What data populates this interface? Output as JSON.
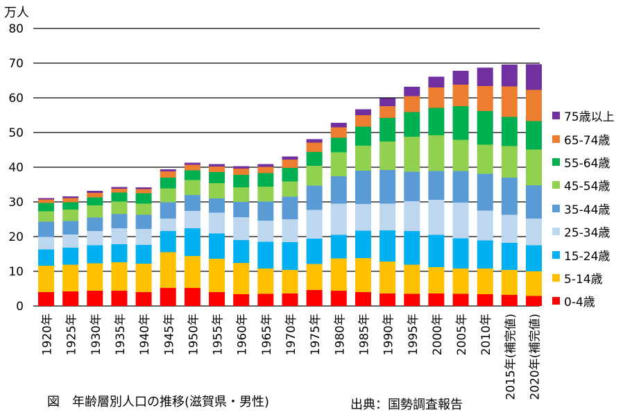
{
  "chart_data": {
    "type": "bar",
    "stacked": true,
    "unit": "万人",
    "title": "図　年齢層別人口の推移(滋賀県・男性)",
    "source": "出典：国勢調査報告",
    "ylim": [
      0,
      80
    ],
    "yticks": [
      0,
      10,
      20,
      30,
      40,
      50,
      60,
      70,
      80
    ],
    "grid": true,
    "legend_position": "right",
    "categories": [
      "1920年",
      "1925年",
      "1930年",
      "1935年",
      "1940年",
      "1945年",
      "1950年",
      "1955年",
      "1960年",
      "1965年",
      "1970年",
      "1975年",
      "1980年",
      "1985年",
      "1990年",
      "1995年",
      "2000年",
      "2005年",
      "2010年",
      "2015年(補完値)",
      "2020年(補完値)"
    ],
    "series": [
      {
        "name": "0-4歳",
        "color": "#ff0000",
        "values": [
          4.0,
          4.2,
          4.4,
          4.4,
          4.0,
          5.2,
          5.2,
          4.0,
          3.4,
          3.5,
          3.6,
          4.6,
          4.4,
          4.0,
          3.6,
          3.5,
          3.6,
          3.5,
          3.4,
          3.2,
          2.9
        ]
      },
      {
        "name": "5-14歳",
        "color": "#ffc000",
        "values": [
          7.6,
          7.7,
          7.9,
          8.2,
          8.2,
          10.3,
          9.2,
          9.6,
          9.0,
          7.3,
          6.8,
          7.5,
          9.3,
          9.8,
          9.2,
          8.4,
          7.6,
          7.3,
          7.4,
          7.2,
          7.1
        ]
      },
      {
        "name": "15-24歳",
        "color": "#00b0f0",
        "values": [
          4.7,
          4.9,
          5.2,
          5.2,
          5.4,
          6.1,
          8.0,
          7.3,
          6.6,
          7.7,
          8.0,
          7.3,
          6.8,
          7.9,
          9.0,
          9.7,
          9.3,
          8.7,
          8.1,
          7.8,
          7.5
        ]
      },
      {
        "name": "25-34歳",
        "color": "#bdd7ee",
        "values": [
          3.6,
          3.8,
          4.1,
          4.6,
          4.6,
          3.6,
          5.0,
          6.0,
          6.6,
          6.1,
          6.6,
          8.3,
          9.0,
          7.7,
          7.7,
          8.6,
          10.1,
          10.3,
          8.6,
          8.1,
          7.7
        ]
      },
      {
        "name": "35-44歳",
        "color": "#5b9bd5",
        "values": [
          4.4,
          3.9,
          3.9,
          4.1,
          4.1,
          4.7,
          4.6,
          4.1,
          4.4,
          5.5,
          6.5,
          7.0,
          7.9,
          9.6,
          9.7,
          8.5,
          8.3,
          9.1,
          10.6,
          10.7,
          9.6
        ]
      },
      {
        "name": "45-54歳",
        "color": "#92d050",
        "values": [
          3.0,
          3.3,
          3.5,
          3.6,
          3.2,
          4.0,
          4.3,
          4.4,
          4.2,
          4.3,
          4.4,
          5.7,
          6.9,
          7.2,
          8.2,
          10.1,
          10.3,
          9.0,
          8.4,
          9.1,
          10.3
        ]
      },
      {
        "name": "55-64歳",
        "color": "#00b050",
        "values": [
          2.4,
          2.1,
          2.3,
          2.6,
          3.0,
          3.1,
          2.8,
          3.2,
          3.6,
          3.9,
          3.9,
          4.0,
          4.2,
          5.5,
          6.8,
          7.1,
          7.9,
          9.7,
          9.7,
          8.4,
          8.2
        ]
      },
      {
        "name": "65-74歳",
        "color": "#ed7d31",
        "values": [
          1.0,
          1.2,
          1.3,
          1.1,
          1.2,
          1.8,
          1.6,
          1.6,
          1.8,
          1.8,
          2.4,
          2.7,
          3.0,
          3.3,
          3.4,
          4.6,
          5.9,
          6.2,
          7.2,
          8.8,
          9.0
        ]
      },
      {
        "name": "75歳以上",
        "color": "#7030a0",
        "values": [
          0.4,
          0.5,
          0.6,
          0.5,
          0.5,
          0.6,
          0.6,
          0.7,
          0.7,
          0.8,
          0.9,
          1.0,
          1.3,
          1.7,
          2.3,
          2.7,
          3.1,
          4.0,
          5.3,
          6.3,
          7.4
        ]
      }
    ]
  }
}
